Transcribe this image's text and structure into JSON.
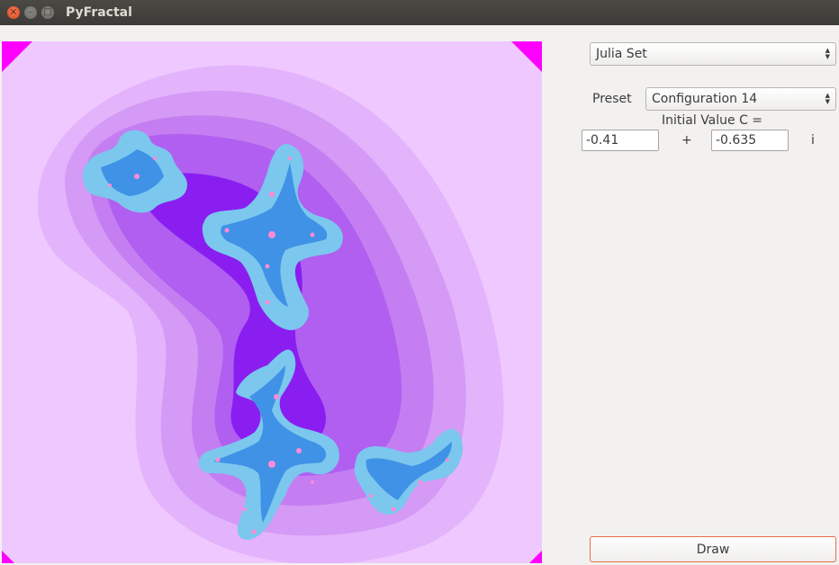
{
  "window": {
    "title": "PyFractal",
    "close_glyph": "×",
    "minimize_glyph": "–",
    "maximize_glyph": "□"
  },
  "fractal_type": {
    "selected": "Julia Set"
  },
  "preset": {
    "label": "Preset",
    "selected": "Configuration 14"
  },
  "initial_value": {
    "label": "Initial Value C =",
    "real": "-0.41",
    "plus": "+",
    "imag": "-0.635",
    "imag_unit": "i"
  },
  "draw_button": {
    "label": "Draw"
  },
  "colors": {
    "outer": "#efc8ff",
    "band1": "#e3b3fb",
    "band2": "#d49af6",
    "band3": "#c47ef1",
    "band4": "#b05ff0",
    "band5": "#8a1ef0",
    "inner_blue": "#7bc7ee",
    "core_blue": "#3f92e6",
    "corner_magenta": "#ff00ff",
    "draw_border": "#e96d4b"
  }
}
